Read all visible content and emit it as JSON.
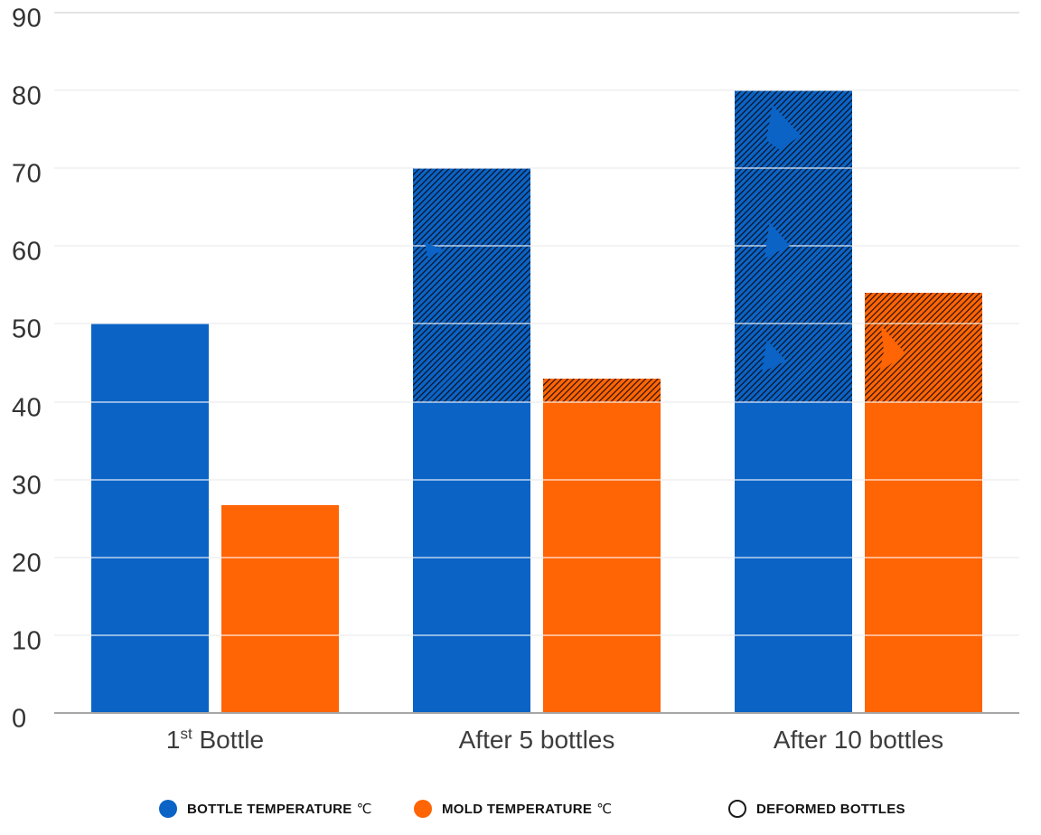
{
  "chart_data": {
    "type": "bar",
    "title": "",
    "categories": [
      {
        "text": "1",
        "sup": "st",
        "rest": " Bottle"
      },
      {
        "text": "After 5 bottles",
        "sup": "",
        "rest": ""
      },
      {
        "text": "After 10 bottles",
        "sup": "",
        "rest": ""
      }
    ],
    "series": [
      {
        "name": "Bottle Temperature °C",
        "key": "bottle-temperature",
        "color": "#0b63c5",
        "values": [
          50,
          70,
          80
        ],
        "deformed": [
          false,
          true,
          true
        ]
      },
      {
        "name": "Mold Temperature °C",
        "key": "mold-temperature",
        "color": "#ff6405",
        "values": [
          26.7,
          43,
          54
        ],
        "deformed": [
          false,
          true,
          true
        ]
      }
    ],
    "deformed_hatch_above": 40,
    "ylim": [
      0,
      90
    ],
    "ytick_step": 10,
    "yticks": [
      0,
      10,
      20,
      30,
      40,
      50,
      60,
      70,
      80,
      90
    ],
    "grid": true,
    "legend_position": "bottom"
  },
  "legend": {
    "items": [
      {
        "label": "BOTTLE TEMPERATURE",
        "unit": "℃",
        "swatch_color": "#0b63c5",
        "swatch_type": "filled",
        "key": "bottle-temperature"
      },
      {
        "label": "MOLD TEMPERATURE",
        "unit": "℃",
        "swatch_color": "#ff6405",
        "swatch_type": "filled",
        "key": "mold-temperature"
      },
      {
        "label": "DEFORMED BOTTLES",
        "unit": "",
        "swatch_color": "#ffffff",
        "swatch_type": "outline",
        "key": "deformed-bottles"
      }
    ]
  },
  "colors": {
    "bar_blue": "#0b63c5",
    "bar_orange": "#ff6405",
    "gridline": "#e4e4e4",
    "axis_line": "#a6a6a6",
    "grid_over_bars": "rgba(255,255,255,0.55)",
    "ytick_text": "#333333",
    "xlabel_text": "#3d3d3d",
    "legend_text": "#121212",
    "legend_outline": "#1a1a1a"
  }
}
